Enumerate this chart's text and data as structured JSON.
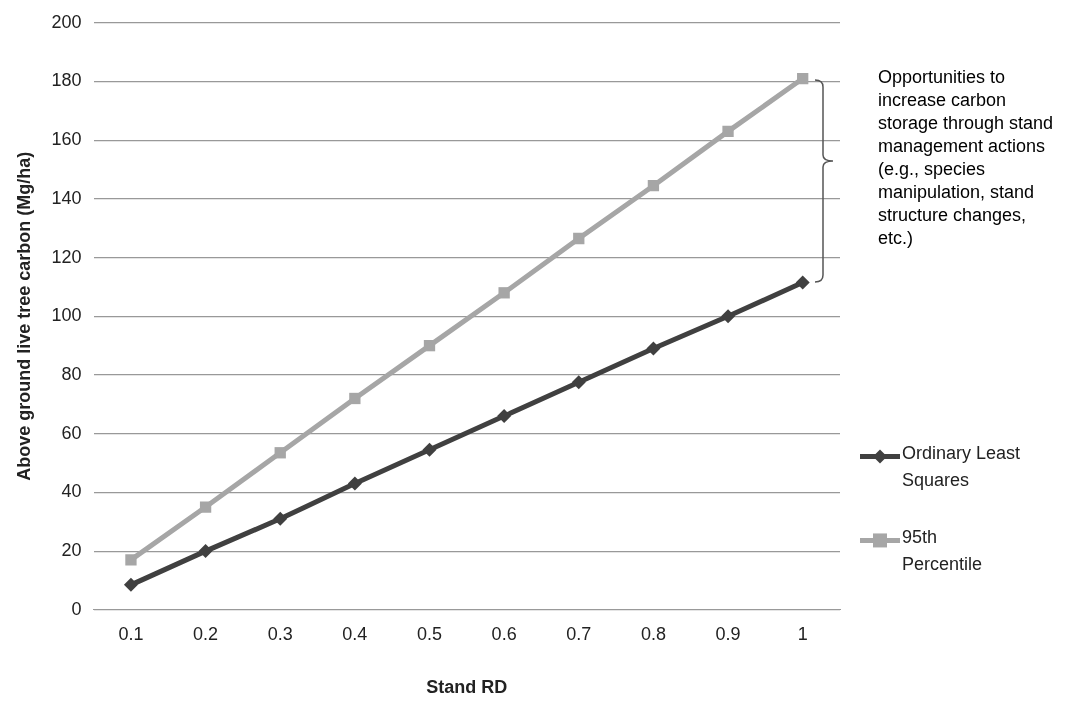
{
  "chart_data": {
    "type": "line",
    "xlabel": "Stand RD",
    "ylabel": "Above ground live tree carbon (Mg/ha)",
    "categories": [
      "0.1",
      "0.2",
      "0.3",
      "0.4",
      "0.5",
      "0.6",
      "0.7",
      "0.8",
      "0.9",
      "1"
    ],
    "series": [
      {
        "name": "Ordinary Least Squares",
        "color": "#404040",
        "marker": "diamond",
        "values": [
          8.5,
          20,
          31,
          43,
          54.5,
          66,
          77.5,
          89,
          100,
          111.5
        ]
      },
      {
        "name": "95th Percentile",
        "color": "#a6a6a6",
        "marker": "square",
        "values": [
          17,
          35,
          53.5,
          72,
          90,
          108,
          126.5,
          144.5,
          163,
          181
        ]
      }
    ],
    "ylim": [
      0,
      200
    ],
    "yticks": [
      0,
      20,
      40,
      60,
      80,
      100,
      120,
      140,
      160,
      180,
      200
    ],
    "grid": "y",
    "legend": "right",
    "line_style": "solid",
    "annotations": [
      "Opportunities to increase carbon storage through stand management actions (e.g., species manipulation, stand structure changes, etc.)"
    ]
  }
}
